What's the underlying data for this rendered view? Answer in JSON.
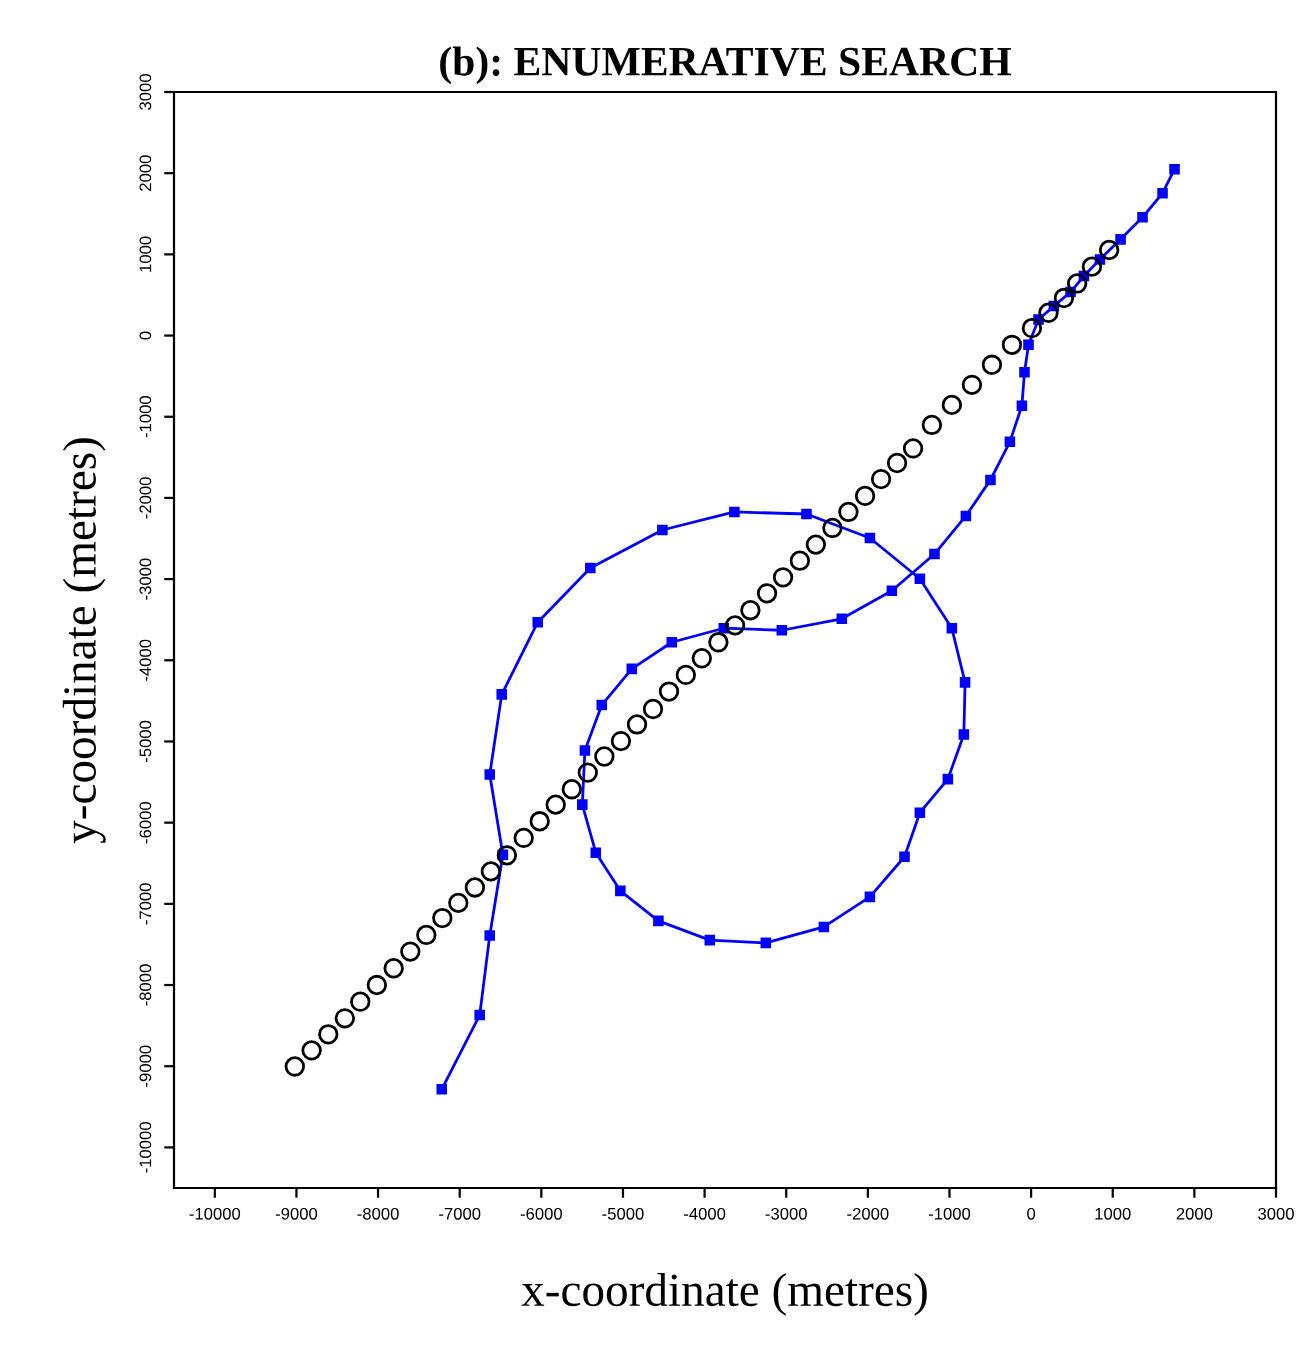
{
  "chart_data": {
    "type": "line",
    "title": "(b): ENUMERATIVE SEARCH",
    "xlabel": "x-coordinate (metres)",
    "ylabel": "y-coordinate (metres)",
    "xlim": [
      -10500,
      3000
    ],
    "ylim": [
      -10500,
      3000
    ],
    "xticks": [
      -10000,
      -9000,
      -8000,
      -7000,
      -6000,
      -5000,
      -4000,
      -3000,
      -2000,
      -1000,
      0,
      1000,
      2000,
      3000
    ],
    "yticks": [
      -10000,
      -9000,
      -8000,
      -7000,
      -6000,
      -5000,
      -4000,
      -3000,
      -2000,
      -1000,
      0,
      1000,
      2000,
      3000
    ],
    "grid": false,
    "series": [
      {
        "color": "#0000ff",
        "marker": "square",
        "line_style": "solid",
        "x": [
          -7220,
          -6755,
          -6632,
          -6471,
          -6632,
          -6485,
          -6044,
          -5400,
          -4517,
          -3635,
          -2752,
          -1975,
          -1363,
          -971,
          -809,
          -824,
          -1020,
          -1363,
          -1551,
          -1975,
          -2539,
          -3250,
          -3936,
          -4566,
          -5032,
          -5333,
          -5498,
          -5466,
          -5260,
          -4892,
          -4402,
          -3765,
          -3054,
          -2319,
          -1706,
          -1184,
          -799,
          -498,
          -260,
          -113,
          -81,
          -32,
          91,
          279,
          483,
          647,
          843,
          1096,
          1365,
          1610,
          1757
        ],
        "values": [
          -9284,
          -8370,
          -7390,
          -6395,
          -5407,
          -4420,
          -3531,
          -2864,
          -2395,
          -2173,
          -2198,
          -2494,
          -2995,
          -3605,
          -4272,
          -4914,
          -5464,
          -5877,
          -6420,
          -6914,
          -7284,
          -7481,
          -7447,
          -7210,
          -6840,
          -6370,
          -5778,
          -5111,
          -4551,
          -4106,
          -3778,
          -3605,
          -3630,
          -3489,
          -3143,
          -2691,
          -2222,
          -1778,
          -1309,
          -864,
          -452,
          -114,
          198,
          363,
          536,
          733,
          938,
          1185,
          1457,
          1753,
          2049
        ]
      },
      {
        "type": "scatter",
        "color": "#000000",
        "marker": "circle",
        "x": [
          -9020,
          -8814,
          -8610,
          -8407,
          -8218,
          -8015,
          -7809,
          -7605,
          -7409,
          -7213,
          -7017,
          -6814,
          -6618,
          -6422,
          -6216,
          -6020,
          -5824,
          -5627,
          -5431,
          -5228,
          -5025,
          -4828,
          -4632,
          -4436,
          -4230,
          -4034,
          -3831,
          -3627,
          -3439,
          -3235,
          -3039,
          -2833,
          -2637,
          -2434,
          -2238,
          -2034,
          -1838,
          -1642,
          -1446,
          -1216,
          -971,
          -725,
          -480,
          -235,
          10,
          213,
          402,
          564,
          745,
          956
        ],
        "values": [
          -9003,
          -8805,
          -8607,
          -8410,
          -8205,
          -8000,
          -7793,
          -7588,
          -7383,
          -7175,
          -6988,
          -6798,
          -6600,
          -6402,
          -6188,
          -5983,
          -5778,
          -5588,
          -5383,
          -5185,
          -4995,
          -4790,
          -4600,
          -4385,
          -4180,
          -3975,
          -3778,
          -3570,
          -3383,
          -3175,
          -2978,
          -2773,
          -2575,
          -2370,
          -2173,
          -1975,
          -1768,
          -1570,
          -1390,
          -1101,
          -854,
          -607,
          -360,
          -114,
          91,
          281,
          462,
          642,
          849,
          1054
        ]
      }
    ]
  }
}
